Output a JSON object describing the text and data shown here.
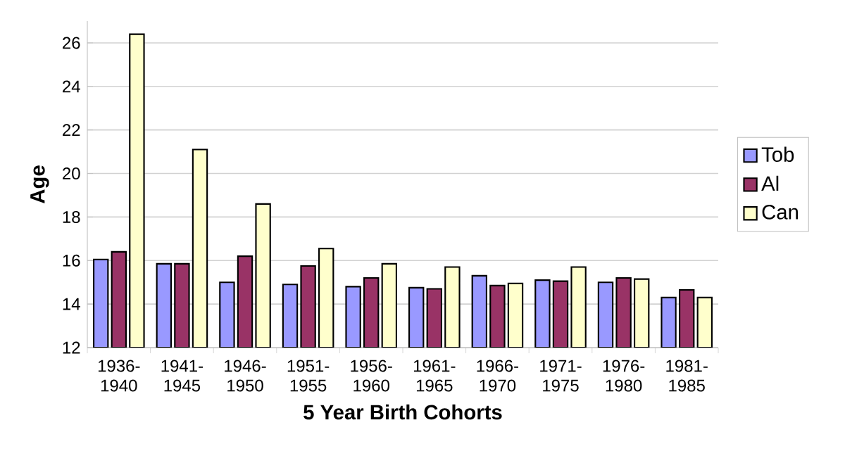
{
  "chart_data": {
    "type": "bar",
    "xlabel": "5 Year Birth Cohorts",
    "ylabel": "Age",
    "categories": [
      "1936-1940",
      "1941-1945",
      "1946-1950",
      "1951-1955",
      "1956-1960",
      "1961-1965",
      "1966-1970",
      "1971-1975",
      "1976-1980",
      "1981-1985"
    ],
    "series": [
      {
        "name": "Tob",
        "color": "#9999ff",
        "values": [
          16.05,
          15.85,
          15.0,
          14.9,
          14.8,
          14.75,
          15.3,
          15.1,
          15.0,
          14.3
        ]
      },
      {
        "name": "Al",
        "color": "#993366",
        "values": [
          16.4,
          15.85,
          16.2,
          15.75,
          15.2,
          14.7,
          14.85,
          15.05,
          15.2,
          14.65
        ]
      },
      {
        "name": "Can",
        "color": "#ffffcc",
        "values": [
          26.4,
          21.1,
          18.6,
          16.55,
          15.85,
          15.7,
          14.95,
          15.7,
          15.15,
          14.3
        ]
      }
    ],
    "ylim": [
      12,
      27
    ],
    "yticks": [
      12,
      14,
      16,
      18,
      20,
      22,
      24,
      26
    ],
    "grid": "y",
    "legend": "right"
  }
}
